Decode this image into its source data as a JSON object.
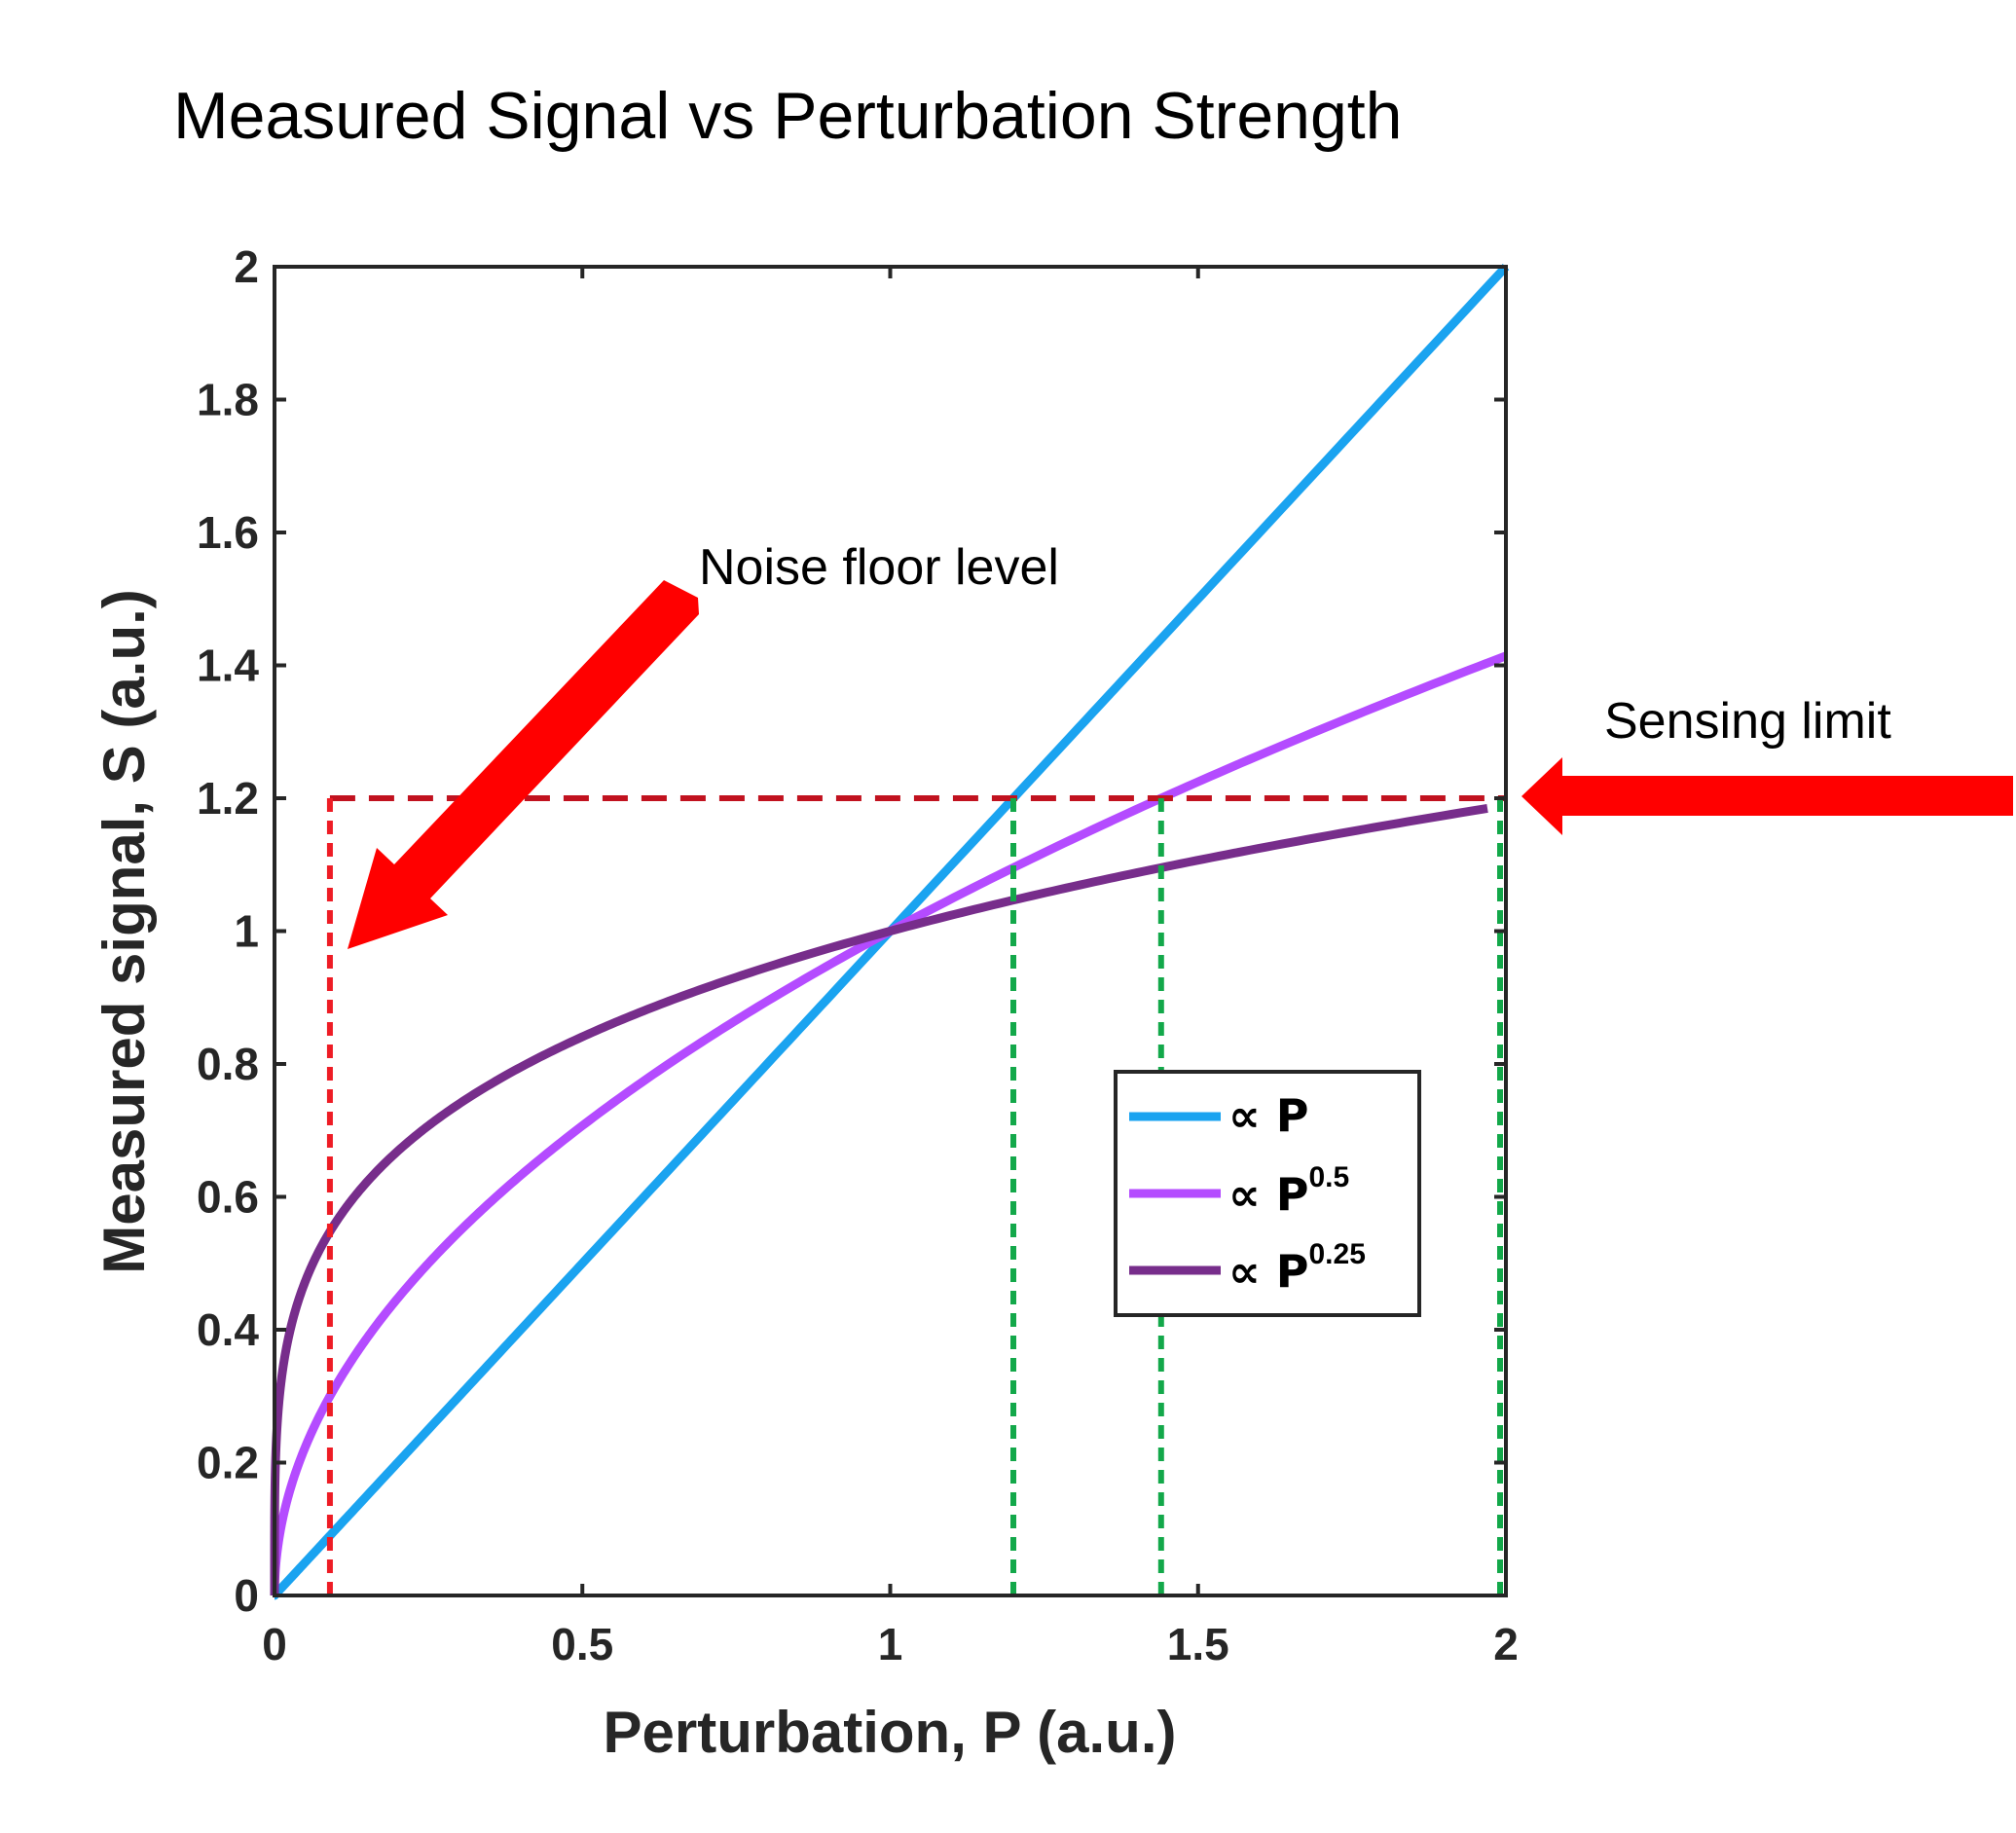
{
  "chart_data": {
    "type": "line",
    "title": "Measured Signal vs Perturbation Strength",
    "xlabel": "Perturbation, P (a.u.)",
    "ylabel": "Measured signal, S (a.u.)",
    "xlim": [
      0,
      2
    ],
    "ylim": [
      0,
      2
    ],
    "xticks": [
      0,
      0.5,
      1,
      1.5,
      2
    ],
    "xtick_labels": [
      "0",
      "0.5",
      "1",
      "1.5",
      "2"
    ],
    "yticks": [
      0,
      0.2,
      0.4,
      0.6,
      0.8,
      1,
      1.2,
      1.4,
      1.6,
      1.8,
      2
    ],
    "ytick_labels": [
      "0",
      "0.2",
      "0.4",
      "0.6",
      "0.8",
      "1",
      "1.2",
      "1.4",
      "1.6",
      "1.8",
      "2"
    ],
    "grid": false,
    "legend_position": "center-right",
    "series": [
      {
        "name": "∝ P",
        "base": "∝ P",
        "sup": "",
        "exponent": 1,
        "color": "#1aa3f0",
        "x_range": [
          0,
          2
        ]
      },
      {
        "name": "∝ P^0.5",
        "base": "∝ P",
        "sup": "0.5",
        "exponent": 0.5,
        "color": "#b44bff",
        "x_range": [
          0,
          2
        ]
      },
      {
        "name": "∝ P^0.25",
        "base": "∝ P",
        "sup": "0.25",
        "exponent": 0.25,
        "color": "#772d8b",
        "x_range": [
          0,
          1.97
        ]
      }
    ],
    "reference_lines": {
      "sensing_limit_y": 1.2,
      "noise_floor_x": 0.09,
      "crossing_x": [
        1.2,
        1.44,
        2.0
      ]
    },
    "annotations": {
      "noise_floor": "Noise floor level",
      "sensing_limit": "Sensing limit"
    },
    "colors": {
      "axes": "#262626",
      "limit_line": "#c1121f",
      "noise_line": "#ee1c25",
      "crossing_lines": "#13a84a",
      "arrow": "#ff0000"
    }
  }
}
